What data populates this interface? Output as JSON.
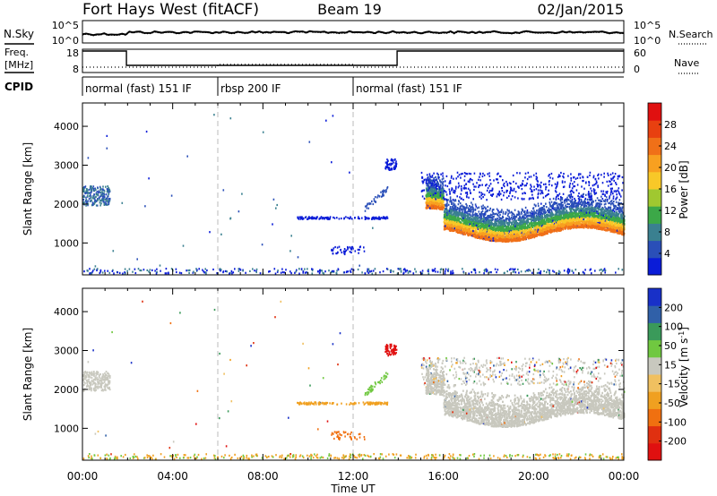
{
  "header": {
    "station": "Fort Hays West (fitACF)",
    "beam": "Beam 19",
    "date": "02/Jan/2015"
  },
  "noise_panel": {
    "left_label": "N.Sky",
    "left_tick_top": "10^5",
    "left_tick_bottom": "10^0",
    "right_tick_top": "10^5",
    "right_tick_bottom": "10^0",
    "right_label": "N.Search"
  },
  "freq_panel": {
    "left_label_1": "Freq.",
    "left_label_2": "[MHz]",
    "left_tick_top": "18",
    "left_tick_bottom": "8",
    "right_tick_top": "60",
    "right_tick_bottom": "0",
    "right_label": "Nave"
  },
  "cpid_panel": {
    "label": "CPID",
    "segments": [
      {
        "text": "normal (fast) 151 IF",
        "start_hour": 0
      },
      {
        "text": "rbsp 200 IF",
        "start_hour": 6
      },
      {
        "text": "normal (fast) 151 IF",
        "start_hour": 12
      }
    ]
  },
  "chart_data": [
    {
      "type": "heatmap",
      "name": "power",
      "ylabel": "Slant Range [km]",
      "xlabel": "Time UT",
      "xlim_hours": [
        0,
        24
      ],
      "ylim": [
        180,
        4600
      ],
      "y_ticks": [
        1000,
        2000,
        3000,
        4000
      ],
      "x_ticks": [
        "00:00",
        "04:00",
        "08:00",
        "12:00",
        "16:00",
        "20:00",
        "00:00"
      ],
      "colorbar": {
        "label": "Power [dB]",
        "ticks": [
          "4",
          "8",
          "12",
          "16",
          "20",
          "24",
          "28"
        ],
        "colors": [
          "#0a1cd8",
          "#2a4fb8",
          "#3a8090",
          "#3ca848",
          "#a0c830",
          "#f8c828",
          "#f8a020",
          "#f07018",
          "#e84010",
          "#e01010"
        ]
      },
      "features": [
        {
          "desc": "sporadic echo",
          "hour_range": [
            0,
            1.2
          ],
          "range_km": [
            1950,
            2500
          ],
          "power_db": 10
        },
        {
          "desc": "main band",
          "hour_range": [
            15.2,
            24
          ],
          "range_km": [
            1150,
            2100
          ],
          "power_db": 20
        }
      ]
    },
    {
      "type": "heatmap",
      "name": "velocity",
      "ylabel": "Slant Range [km]",
      "xlabel": "Time UT",
      "xlim_hours": [
        0,
        24
      ],
      "ylim": [
        180,
        4600
      ],
      "y_ticks": [
        1000,
        2000,
        3000,
        4000
      ],
      "x_ticks": [
        "00:00",
        "04:00",
        "08:00",
        "12:00",
        "16:00",
        "20:00",
        "00:00"
      ],
      "colorbar": {
        "label": "Velocity [m s^-1]",
        "ticks": [
          "200",
          "100",
          "50",
          "15",
          "-15",
          "-50",
          "-100",
          "-200"
        ],
        "colors": [
          "#1830c8",
          "#3060a8",
          "#3a9a5a",
          "#70c840",
          "#c8c8be",
          "#f0c060",
          "#f0a020",
          "#f07010",
          "#e03010",
          "#e01010"
        ]
      }
    }
  ]
}
